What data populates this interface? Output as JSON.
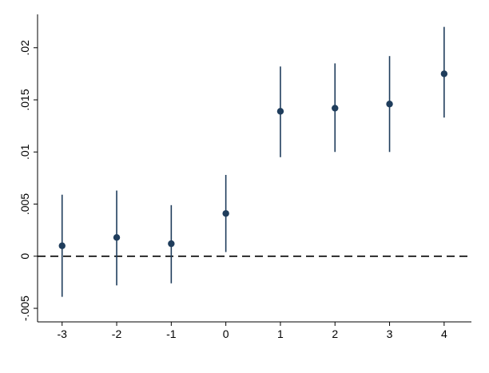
{
  "chart_data": {
    "type": "scatter",
    "title": "",
    "xlabel": "",
    "ylabel": "",
    "x_ticks": [
      "-3",
      "-2",
      "-1",
      "0",
      "1",
      "2",
      "3",
      "4"
    ],
    "y_ticks": [
      "-.005",
      "0",
      ".005",
      ".01",
      ".015",
      ".02"
    ],
    "y_tick_values": [
      -0.005,
      0,
      0.005,
      0.01,
      0.015,
      0.02
    ],
    "xlim": [
      -3.45,
      4.5
    ],
    "ylim": [
      -0.0063,
      0.0232
    ],
    "reference_line": {
      "y": 0,
      "style": "dashed"
    },
    "points": [
      {
        "x": -3,
        "y": 0.001,
        "ci_low": -0.0039,
        "ci_high": 0.0059
      },
      {
        "x": -2,
        "y": 0.0018,
        "ci_low": -0.0028,
        "ci_high": 0.0063
      },
      {
        "x": -1,
        "y": 0.0012,
        "ci_low": -0.0026,
        "ci_high": 0.0049
      },
      {
        "x": 0,
        "y": 0.0041,
        "ci_low": 0.0004,
        "ci_high": 0.0078
      },
      {
        "x": 1,
        "y": 0.0139,
        "ci_low": 0.0095,
        "ci_high": 0.0182
      },
      {
        "x": 2,
        "y": 0.0142,
        "ci_low": 0.01,
        "ci_high": 0.0185
      },
      {
        "x": 3,
        "y": 0.0146,
        "ci_low": 0.01,
        "ci_high": 0.0192
      },
      {
        "x": 4,
        "y": 0.0175,
        "ci_low": 0.0133,
        "ci_high": 0.022
      }
    ],
    "colors": {
      "marker": "#1f3d5c",
      "ci": "#1f3d5c",
      "axis": "#000000",
      "reference": "#000000"
    },
    "grid": false
  }
}
